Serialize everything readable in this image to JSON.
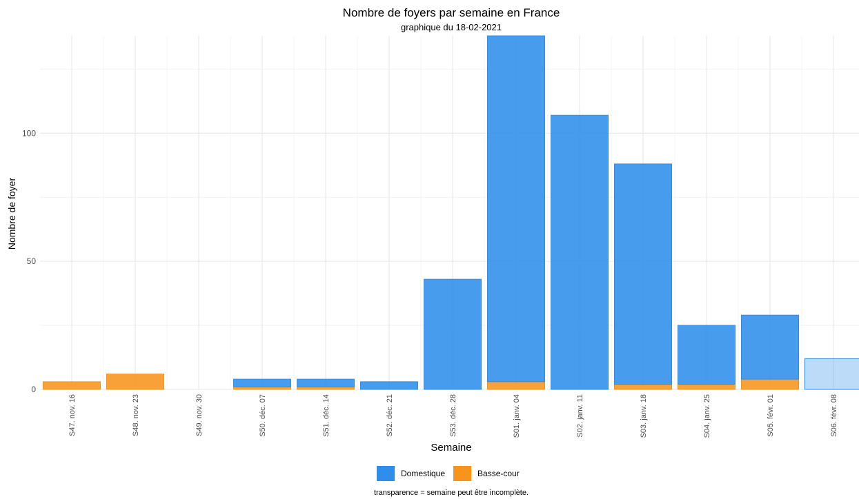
{
  "chart_data": {
    "type": "bar",
    "stacked": true,
    "title": "Nombre de foyers par semaine en France",
    "subtitle": "graphique du 18-02-2021",
    "xlabel": "Semaine",
    "ylabel": "Nombre de foyer",
    "caption": "transparence = semaine peut être incomplète.",
    "categories": [
      "S47. nov. 16",
      "S48. nov. 23",
      "S49. nov. 30",
      "S50. déc. 07",
      "S51. déc. 14",
      "S52. déc. 21",
      "S53. déc. 28",
      "S01. janv. 04",
      "S02. janv. 11",
      "S03. janv. 18",
      "S04. janv. 25",
      "S05. févr. 01",
      "S06. févr. 08"
    ],
    "series": [
      {
        "name": "Basse-cour",
        "color": "#F7941D",
        "values": [
          3,
          6,
          0,
          1,
          1,
          0,
          0,
          3,
          0,
          2,
          2,
          4,
          0
        ]
      },
      {
        "name": "Domestique",
        "color": "#2E8EEA",
        "values": [
          0,
          0,
          0,
          3,
          3,
          3,
          43,
          135,
          107,
          86,
          23,
          25,
          12
        ]
      }
    ],
    "incomplete": [
      false,
      false,
      false,
      false,
      false,
      false,
      false,
      false,
      false,
      false,
      false,
      false,
      true
    ],
    "ylim": [
      0,
      138
    ],
    "yticks": [
      0,
      50,
      100
    ],
    "grid": true,
    "legend_position": "bottom",
    "legend_order": [
      "Domestique",
      "Basse-cour"
    ]
  }
}
